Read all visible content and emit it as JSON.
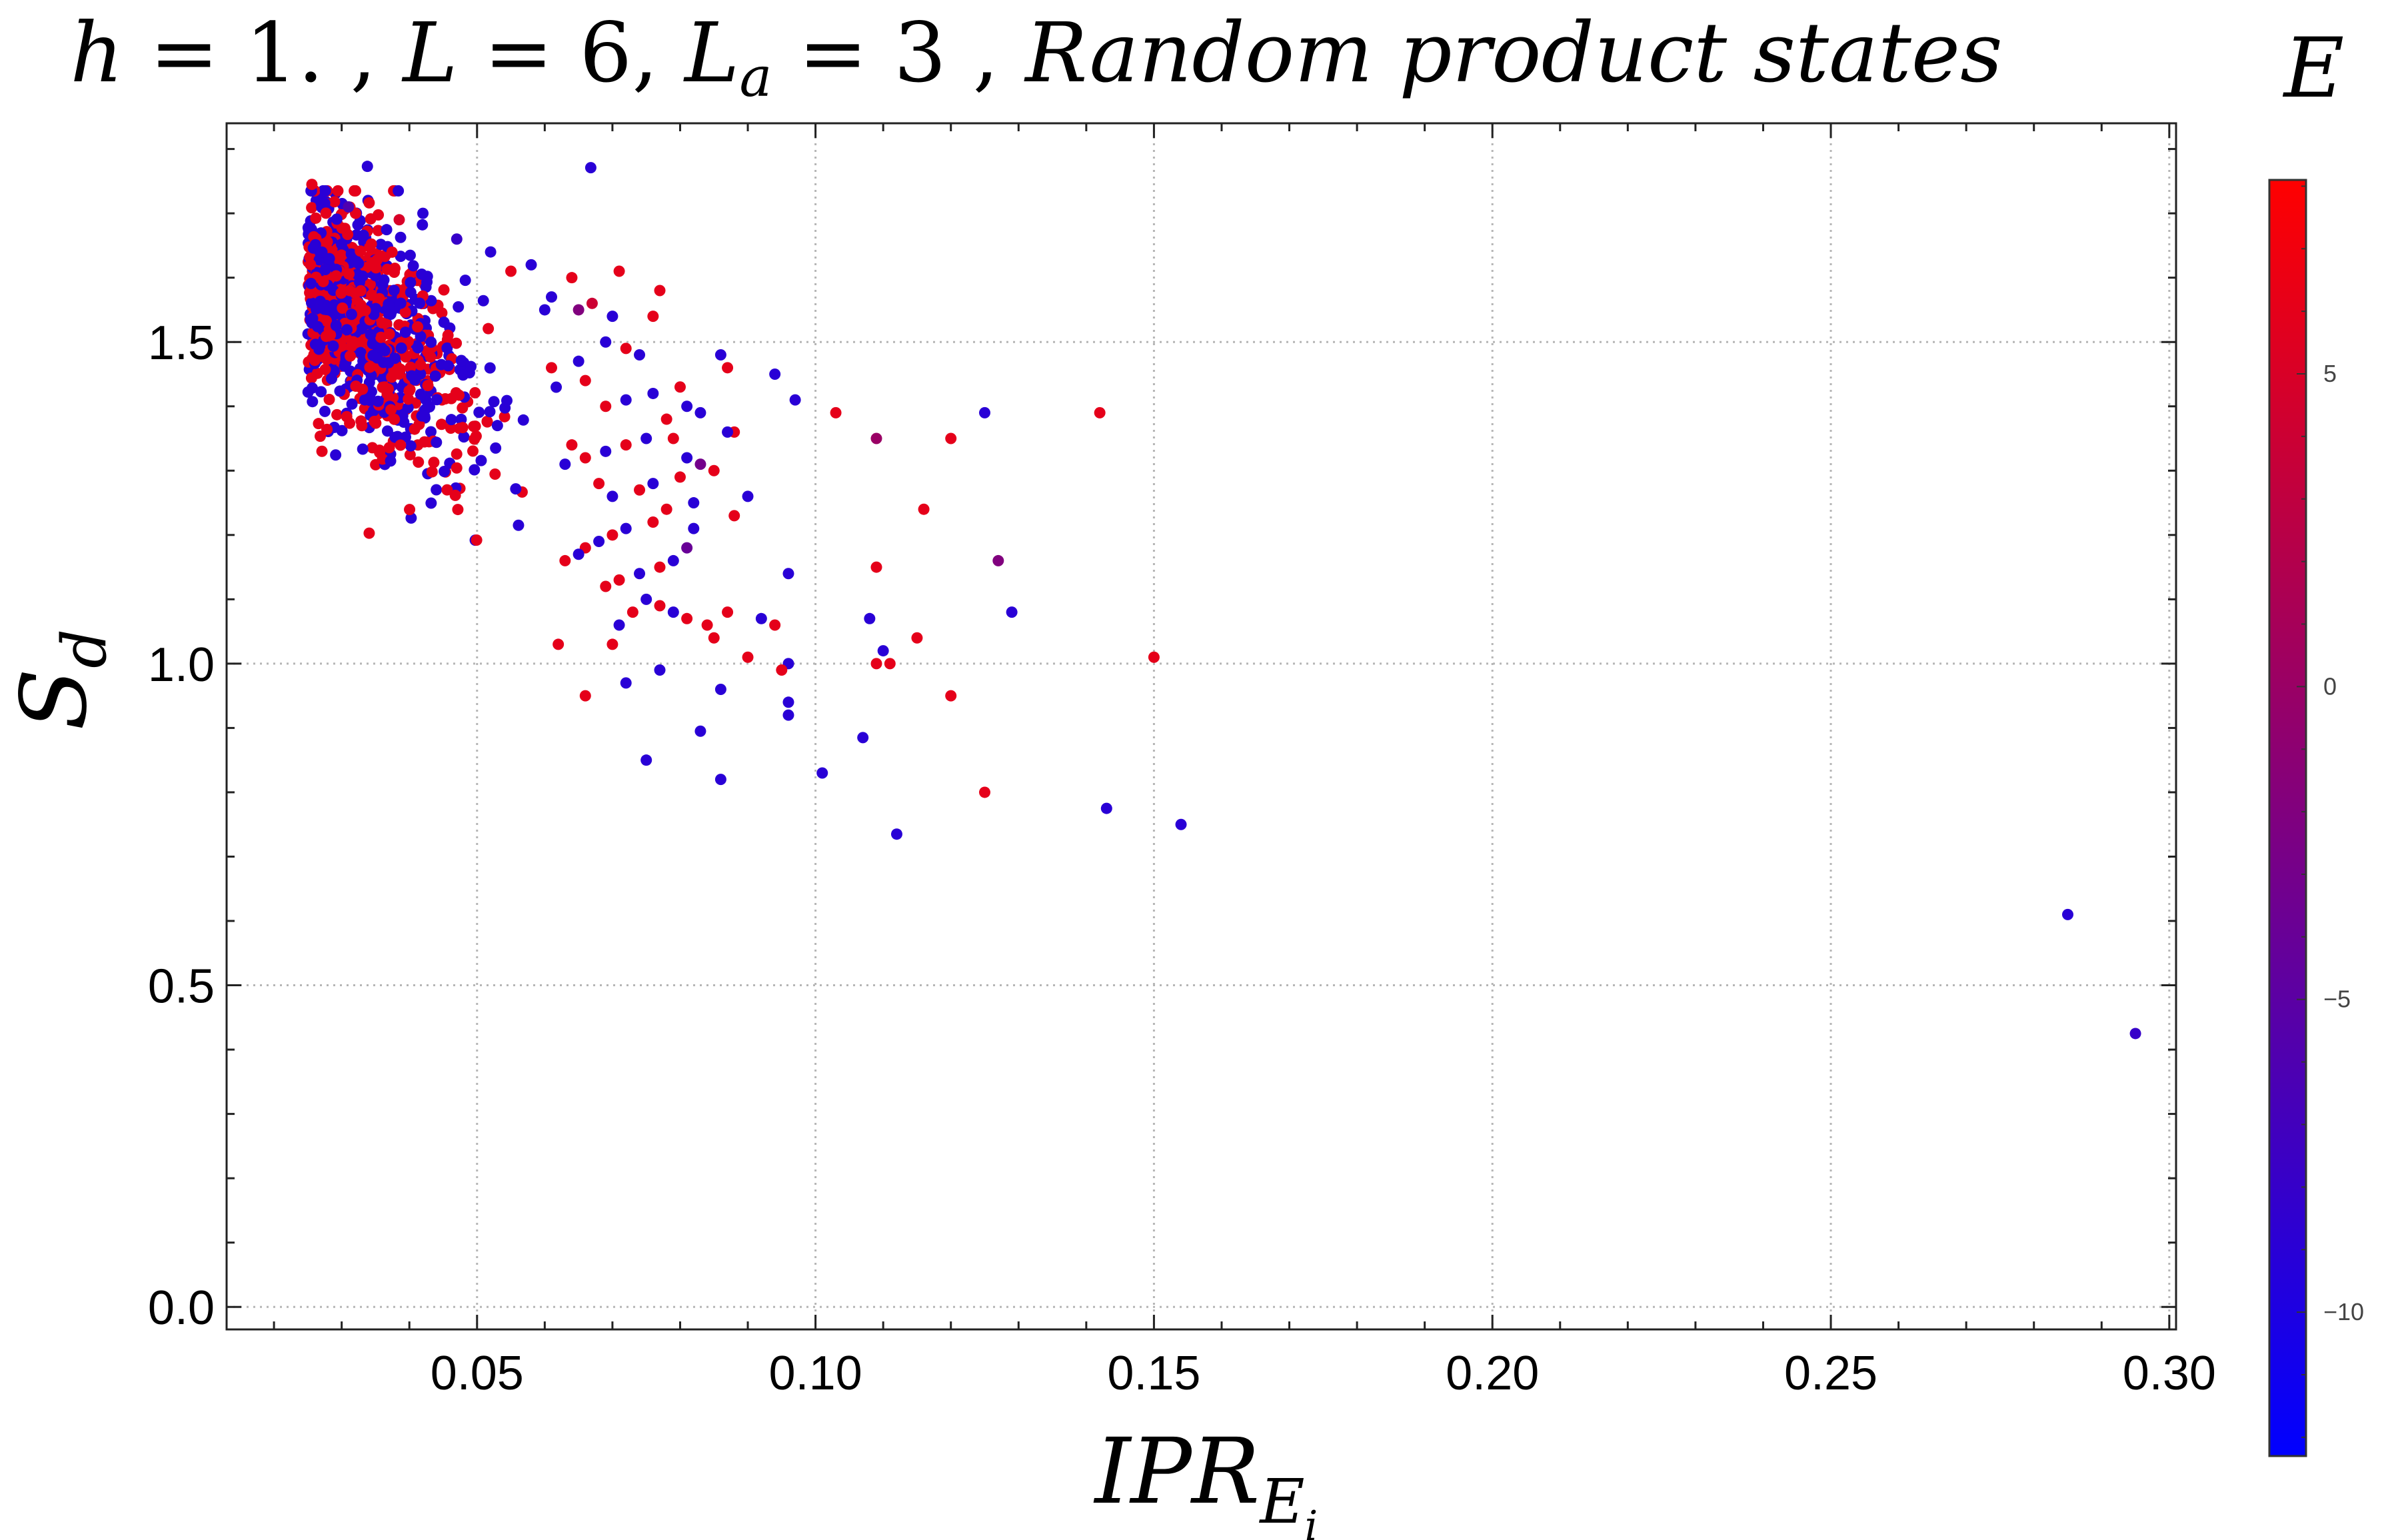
{
  "chart_data": {
    "type": "scatter",
    "title": "h = 1. , L = 6,  L_a = 3 , Random product states",
    "title_parts": {
      "h": "h",
      "eq1": " = 1. , ",
      "L": "L",
      "eq2": " = 6,  ",
      "La_L": "L",
      "La_sub": "a",
      "eq3": " = 3 , ",
      "tail": "Random product states"
    },
    "xlabel": {
      "main": "IPR",
      "sub": "E",
      "subsub": "i"
    },
    "ylabel": {
      "main": "S",
      "sub": "d"
    },
    "xlim": [
      0.013,
      0.301
    ],
    "ylim": [
      -0.035,
      1.84
    ],
    "x_ticks": [
      0.05,
      0.1,
      0.15,
      0.2,
      0.25,
      0.3
    ],
    "x_tick_labels": [
      "0.05",
      "0.10",
      "0.15",
      "0.20",
      "0.25",
      "0.30"
    ],
    "y_ticks": [
      0.0,
      0.5,
      1.0,
      1.5
    ],
    "y_tick_labels": [
      "0.0",
      "0.5",
      "1.0",
      "1.5"
    ],
    "grid": true,
    "colorbar": {
      "label": "E",
      "range": [
        -12.3,
        8.1
      ],
      "ticks": [
        5,
        0,
        -5,
        -10
      ],
      "tick_labels": [
        "5",
        "0",
        "−5",
        "−10"
      ],
      "low_color": "#0000ff",
      "high_color": "#ff0000"
    },
    "points": [
      [
        0.0338,
        1.773,
        -9
      ],
      [
        0.0668,
        1.771,
        -9
      ],
      [
        0.0256,
        1.745,
        6
      ],
      [
        0.031,
        1.71,
        -6
      ],
      [
        0.042,
        1.7,
        -9
      ],
      [
        0.0385,
        1.69,
        5
      ],
      [
        0.047,
        1.66,
        -8
      ],
      [
        0.052,
        1.64,
        -9
      ],
      [
        0.055,
        1.61,
        6
      ],
      [
        0.058,
        1.62,
        -9
      ],
      [
        0.064,
        1.6,
        6
      ],
      [
        0.071,
        1.61,
        6
      ],
      [
        0.077,
        1.58,
        6
      ],
      [
        0.061,
        1.57,
        -9
      ],
      [
        0.06,
        1.55,
        -9
      ],
      [
        0.067,
        1.56,
        4
      ],
      [
        0.065,
        1.55,
        -2
      ],
      [
        0.07,
        1.54,
        -9
      ],
      [
        0.076,
        1.54,
        6
      ],
      [
        0.069,
        1.5,
        -9
      ],
      [
        0.072,
        1.49,
        6
      ],
      [
        0.074,
        1.48,
        -9
      ],
      [
        0.065,
        1.47,
        -9
      ],
      [
        0.061,
        1.46,
        6
      ],
      [
        0.066,
        1.44,
        6
      ],
      [
        0.086,
        1.48,
        -9
      ],
      [
        0.087,
        1.46,
        6
      ],
      [
        0.094,
        1.45,
        -9
      ],
      [
        0.08,
        1.43,
        6
      ],
      [
        0.076,
        1.42,
        -9
      ],
      [
        0.072,
        1.41,
        -9
      ],
      [
        0.069,
        1.4,
        6
      ],
      [
        0.083,
        1.39,
        -9
      ],
      [
        0.081,
        1.4,
        -9
      ],
      [
        0.078,
        1.38,
        6
      ],
      [
        0.097,
        1.41,
        -9
      ],
      [
        0.103,
        1.39,
        6
      ],
      [
        0.142,
        1.39,
        6
      ],
      [
        0.125,
        1.39,
        -9
      ],
      [
        0.088,
        1.36,
        6
      ],
      [
        0.087,
        1.36,
        -9
      ],
      [
        0.079,
        1.35,
        6
      ],
      [
        0.075,
        1.35,
        -9
      ],
      [
        0.072,
        1.34,
        6
      ],
      [
        0.069,
        1.33,
        -9
      ],
      [
        0.066,
        1.32,
        6
      ],
      [
        0.064,
        1.34,
        6
      ],
      [
        0.063,
        1.31,
        -9
      ],
      [
        0.081,
        1.32,
        -9
      ],
      [
        0.083,
        1.31,
        -3
      ],
      [
        0.085,
        1.3,
        6
      ],
      [
        0.08,
        1.29,
        6
      ],
      [
        0.076,
        1.28,
        -9
      ],
      [
        0.074,
        1.27,
        6
      ],
      [
        0.07,
        1.26,
        -9
      ],
      [
        0.068,
        1.28,
        6
      ],
      [
        0.109,
        1.35,
        0
      ],
      [
        0.12,
        1.35,
        6
      ],
      [
        0.09,
        1.26,
        -9
      ],
      [
        0.082,
        1.25,
        -9
      ],
      [
        0.078,
        1.24,
        6
      ],
      [
        0.076,
        1.22,
        6
      ],
      [
        0.072,
        1.21,
        -9
      ],
      [
        0.07,
        1.2,
        6
      ],
      [
        0.068,
        1.19,
        -9
      ],
      [
        0.066,
        1.18,
        6
      ],
      [
        0.065,
        1.17,
        -9
      ],
      [
        0.063,
        1.16,
        6
      ],
      [
        0.088,
        1.23,
        6
      ],
      [
        0.082,
        1.21,
        -9
      ],
      [
        0.081,
        1.18,
        -4
      ],
      [
        0.079,
        1.16,
        -9
      ],
      [
        0.077,
        1.15,
        6
      ],
      [
        0.074,
        1.14,
        -9
      ],
      [
        0.071,
        1.13,
        6
      ],
      [
        0.069,
        1.12,
        6
      ],
      [
        0.096,
        1.14,
        -9
      ],
      [
        0.109,
        1.15,
        6
      ],
      [
        0.116,
        1.24,
        6
      ],
      [
        0.127,
        1.16,
        -2
      ],
      [
        0.129,
        1.08,
        -9
      ],
      [
        0.108,
        1.07,
        -9
      ],
      [
        0.094,
        1.06,
        6
      ],
      [
        0.092,
        1.07,
        -9
      ],
      [
        0.087,
        1.08,
        6
      ],
      [
        0.084,
        1.06,
        6
      ],
      [
        0.081,
        1.07,
        6
      ],
      [
        0.079,
        1.08,
        -9
      ],
      [
        0.077,
        1.09,
        6
      ],
      [
        0.075,
        1.1,
        -9
      ],
      [
        0.073,
        1.08,
        6
      ],
      [
        0.071,
        1.06,
        -9
      ],
      [
        0.085,
        1.04,
        6
      ],
      [
        0.096,
        1.0,
        -9
      ],
      [
        0.095,
        0.99,
        6
      ],
      [
        0.09,
        1.01,
        6
      ],
      [
        0.11,
        1.02,
        -9
      ],
      [
        0.109,
        1.0,
        6
      ],
      [
        0.111,
        1.0,
        6
      ],
      [
        0.115,
        1.04,
        6
      ],
      [
        0.15,
        1.01,
        6
      ],
      [
        0.077,
        0.99,
        -9
      ],
      [
        0.07,
        1.03,
        6
      ],
      [
        0.062,
        1.03,
        6
      ],
      [
        0.096,
        0.94,
        -9
      ],
      [
        0.096,
        0.92,
        -9
      ],
      [
        0.086,
        0.96,
        -9
      ],
      [
        0.072,
        0.97,
        -9
      ],
      [
        0.066,
        0.95,
        6
      ],
      [
        0.12,
        0.95,
        6
      ],
      [
        0.083,
        0.895,
        -9
      ],
      [
        0.107,
        0.885,
        -9
      ],
      [
        0.075,
        0.85,
        -9
      ],
      [
        0.101,
        0.83,
        -9
      ],
      [
        0.086,
        0.82,
        -9
      ],
      [
        0.125,
        0.8,
        6
      ],
      [
        0.143,
        0.775,
        -9
      ],
      [
        0.154,
        0.75,
        -9
      ],
      [
        0.112,
        0.735,
        -9
      ],
      [
        0.285,
        0.61,
        -9
      ],
      [
        0.295,
        0.425,
        -8
      ]
    ],
    "dense_cluster": {
      "x_range": [
        0.024,
        0.062
      ],
      "y_center": 1.53,
      "count": 950,
      "colors": [
        -9,
        6
      ]
    }
  }
}
